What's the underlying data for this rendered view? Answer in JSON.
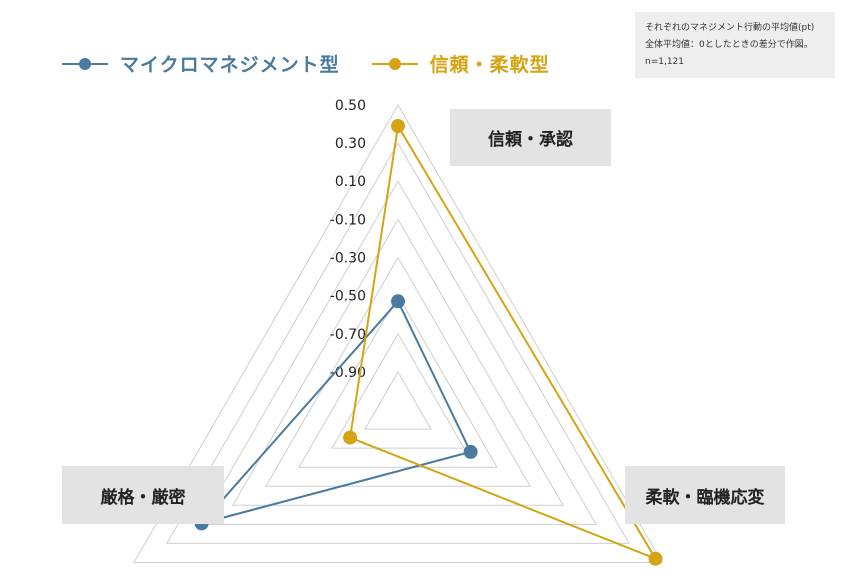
{
  "legend": {
    "items": [
      {
        "label": "マイクロマネジメント型",
        "color": "#497aa0"
      },
      {
        "label": "信頼・柔軟型",
        "color": "#d4a414"
      }
    ]
  },
  "note": {
    "lines": [
      "それぞれのマネジメント行動の平均値(pt)",
      "全体平均値：0としたときの差分で作図。",
      "n=1,121"
    ]
  },
  "axis_labels": {
    "top": "信頼・承認",
    "left": "厳格・厳密",
    "right": "柔軟・臨機応変"
  },
  "chart_data": {
    "type": "radar",
    "axes": [
      "信頼・承認",
      "柔軟・臨機応変",
      "厳格・厳密"
    ],
    "range": [
      -1.1,
      0.5
    ],
    "tick_values": [
      0.5,
      0.3,
      0.1,
      -0.1,
      -0.3,
      -0.5,
      -0.7,
      -0.9
    ],
    "tick_labels": [
      "0.50",
      "0.30",
      "0.10",
      "-0.10",
      "-0.30",
      "-0.50",
      "-0.70",
      "-0.90"
    ],
    "grid": true,
    "series": [
      {
        "name": "マイクロマネジメント型",
        "color": "#497aa0",
        "values": [
          -0.53,
          -0.66,
          0.09
        ]
      },
      {
        "name": "信頼・柔軟型",
        "color": "#d4a414",
        "values": [
          0.39,
          0.46,
          -0.81
        ]
      }
    ]
  }
}
